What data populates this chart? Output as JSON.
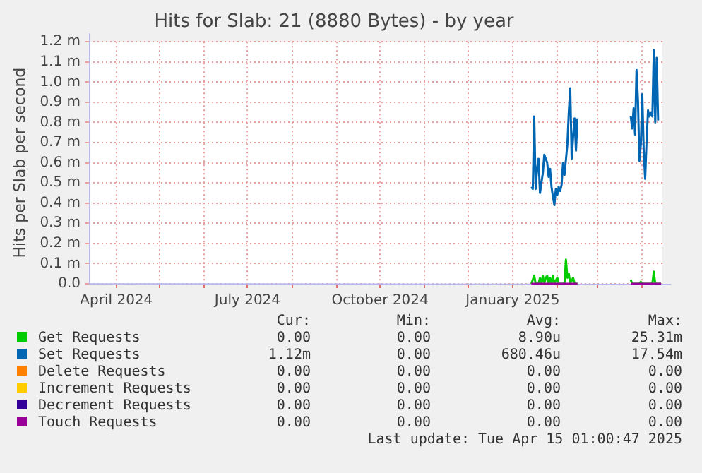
{
  "chart_data": {
    "type": "line",
    "title": "Hits for Slab: 21 (8880 Bytes) - by year",
    "ylabel": "Hits per Slab per second",
    "xlim": [
      "2024-03-13",
      "2025-04-15"
    ],
    "xticks": [
      {
        "value": "2024-04-01",
        "label": "April 2024"
      },
      {
        "value": "2024-05-01",
        "label": null
      },
      {
        "value": "2024-06-01",
        "label": null
      },
      {
        "value": "2024-07-01",
        "label": "July 2024"
      },
      {
        "value": "2024-08-01",
        "label": null
      },
      {
        "value": "2024-09-01",
        "label": null
      },
      {
        "value": "2024-10-01",
        "label": "October 2024"
      },
      {
        "value": "2024-11-01",
        "label": null
      },
      {
        "value": "2024-12-01",
        "label": null
      },
      {
        "value": "2025-01-01",
        "label": "January 2025"
      },
      {
        "value": "2025-02-01",
        "label": null
      },
      {
        "value": "2025-03-01",
        "label": null
      },
      {
        "value": "2025-04-01",
        "label": null
      }
    ],
    "ylim": [
      0,
      1.2
    ],
    "yticks": [
      {
        "value": 0,
        "label": "0.0"
      },
      {
        "value": 0.1,
        "label": "0.1 m"
      },
      {
        "value": 0.2,
        "label": "0.2 m"
      },
      {
        "value": 0.3,
        "label": "0.3 m"
      },
      {
        "value": 0.4,
        "label": "0.4 m"
      },
      {
        "value": 0.5,
        "label": "0.5 m"
      },
      {
        "value": 0.6,
        "label": "0.6 m"
      },
      {
        "value": 0.7,
        "label": "0.7 m"
      },
      {
        "value": 0.8,
        "label": "0.8 m"
      },
      {
        "value": 0.9,
        "label": "0.9 m"
      },
      {
        "value": 1.0,
        "label": "1.0 m"
      },
      {
        "value": 1.1,
        "label": "1.1 m"
      },
      {
        "value": 1.2,
        "label": "1.2 m"
      }
    ],
    "grid": true,
    "legend": "bottom",
    "series": [
      {
        "name": "Get Requests",
        "color": "#00cc00",
        "x": [
          "2025-01-14",
          "2025-01-15",
          "2025-01-16",
          "2025-01-17",
          "2025-01-19",
          "2025-01-20",
          "2025-01-21",
          "2025-01-22",
          "2025-01-23",
          "2025-01-24",
          "2025-01-25",
          "2025-01-26",
          "2025-01-27",
          "2025-01-28",
          "2025-01-29",
          "2025-01-30",
          "2025-02-01",
          "2025-02-02",
          "2025-02-06",
          "2025-02-07",
          "2025-02-08",
          "2025-02-09",
          "2025-02-10",
          "2025-02-12",
          "2025-02-13",
          "2025-02-15",
          "2025-03-01",
          "2025-03-24",
          "2025-03-25",
          "2025-03-30",
          "2025-03-31",
          "2025-04-01",
          "2025-04-08",
          "2025-04-09",
          "2025-04-10",
          "2025-04-14"
        ],
        "values": [
          0,
          0.02,
          0.04,
          0,
          0,
          0.03,
          0,
          0.04,
          0,
          0.03,
          0.04,
          0,
          0.03,
          0,
          0.04,
          0,
          0.03,
          0,
          0,
          0.12,
          0.03,
          0.05,
          0,
          0.03,
          0,
          0,
          null,
          0.02,
          0,
          0,
          0.01,
          0,
          0,
          0.06,
          0,
          0
        ]
      },
      {
        "name": "Set Requests",
        "color": "#0066b3",
        "x": [
          "2025-01-14",
          "2025-01-15",
          "2025-01-16",
          "2025-01-17",
          "2025-01-18",
          "2025-01-19",
          "2025-01-20",
          "2025-01-22",
          "2025-01-23",
          "2025-01-25",
          "2025-01-26",
          "2025-01-27",
          "2025-01-28",
          "2025-01-29",
          "2025-01-30",
          "2025-01-31",
          "2025-02-01",
          "2025-02-02",
          "2025-02-03",
          "2025-02-04",
          "2025-02-05",
          "2025-02-06",
          "2025-02-08",
          "2025-02-09",
          "2025-02-10",
          "2025-02-11",
          "2025-02-12",
          "2025-02-13",
          "2025-02-14",
          "2025-02-15",
          "2025-03-01",
          "2025-03-24",
          "2025-03-25",
          "2025-03-26",
          "2025-03-27",
          "2025-03-28",
          "2025-03-29",
          "2025-03-30",
          "2025-03-31",
          "2025-04-01",
          "2025-04-02",
          "2025-04-03",
          "2025-04-04",
          "2025-04-05",
          "2025-04-06",
          "2025-04-07",
          "2025-04-08",
          "2025-04-09",
          "2025-04-10",
          "2025-04-11",
          "2025-04-12"
        ],
        "values": [
          0.48,
          0.47,
          0.83,
          0.47,
          0.57,
          0.62,
          0.45,
          0.55,
          0.64,
          0.6,
          0.53,
          0.57,
          0.48,
          0.43,
          0.39,
          0.47,
          0.44,
          0.48,
          0.46,
          0.49,
          0.6,
          0.54,
          0.69,
          0.85,
          0.97,
          0.62,
          0.73,
          0.82,
          0.66,
          0.82,
          null,
          0.83,
          0.77,
          0.87,
          0.74,
          1.06,
          0.91,
          0.61,
          0.69,
          0.94,
          0.66,
          0.52,
          0.71,
          0.86,
          0.83,
          0.85,
          0.83,
          1.16,
          0.8,
          1.12,
          0.81
        ]
      },
      {
        "name": "Delete Requests",
        "color": "#ff8000"
      },
      {
        "name": "Increment Requests",
        "color": "#ffcc00"
      },
      {
        "name": "Decrement Requests",
        "color": "#330099"
      },
      {
        "name": "Touch Requests",
        "color": "#990099",
        "x": [
          "2025-01-14",
          "2025-02-15",
          "2025-03-01",
          "2025-03-24",
          "2025-04-14"
        ],
        "values": [
          0,
          0,
          null,
          0,
          0
        ]
      }
    ],
    "annotations": [
      "Cur:",
      "Min:",
      "Avg:",
      "Max:",
      "0.00",
      "0.00",
      "8.90u",
      "25.31m",
      "1.12m",
      "0.00",
      "680.46u",
      "17.54m",
      "0.00",
      "0.00",
      "0.00",
      "0.00",
      "0.00",
      "0.00",
      "0.00",
      "0.00",
      "0.00",
      "0.00",
      "0.00",
      "0.00",
      "0.00",
      "0.00",
      "0.00",
      "0.00",
      "Last update: Tue Apr 15 01:00:47 2025"
    ]
  }
}
